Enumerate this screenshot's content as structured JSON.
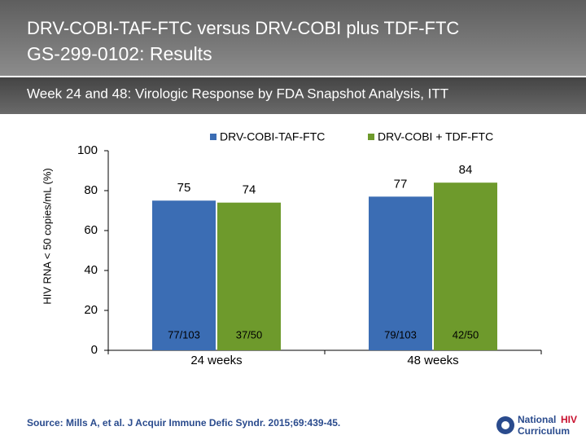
{
  "header": {
    "title": "DRV-COBI-TAF-FTC versus DRV-COBI plus TDF-FTC",
    "subtitle": "GS-299-0102: Results"
  },
  "section": "Week 24 and 48: Virologic Response by FDA Snapshot Analysis, ITT",
  "chart_data": {
    "type": "bar",
    "y_label": "HIV RNA < 50 copies/mL (%)",
    "categories": [
      "24 weeks",
      "48 weeks"
    ],
    "series": [
      {
        "name": "DRV-COBI-TAF-FTC",
        "color": "#3b6db4",
        "values": [
          75,
          77
        ],
        "counts": [
          "77/103",
          "79/103"
        ]
      },
      {
        "name": "DRV-COBI + TDF-FTC",
        "color": "#6e9a2c",
        "values": [
          74,
          84
        ],
        "counts": [
          "37/50",
          "42/50"
        ]
      }
    ],
    "ylim": [
      0,
      100
    ],
    "yticks": [
      0,
      20,
      40,
      60,
      80,
      100
    ],
    "grid": false
  },
  "source": "Source: Mills A, et al. J Acquir Immune Defic Syndr. 2015;69:439-45.",
  "logo": [
    "National",
    "HIV",
    "Curriculum"
  ]
}
